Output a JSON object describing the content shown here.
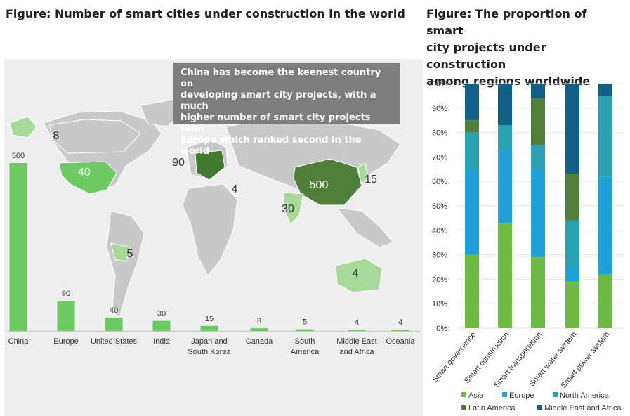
{
  "titles": {
    "left": "Figure: Number of smart cities under construction in the world",
    "right_lines": [
      "Figure: The proportion of smart",
      "city projects under construction",
      "among regions worldwide"
    ]
  },
  "callout_lines": [
    "China has become the keenest country on",
    "developing smart city projects, with a much",
    "higher number of smart city projects than",
    "Europe which ranked second in the world"
  ],
  "map_labels": [
    {
      "region": "Canada",
      "value": "8"
    },
    {
      "region": "United States",
      "value": "40"
    },
    {
      "region": "Europe",
      "value": "90"
    },
    {
      "region": "Middle East and Africa",
      "value": "4"
    },
    {
      "region": "China",
      "value": "500"
    },
    {
      "region": "Japan and South Korea",
      "value": "15"
    },
    {
      "region": "India",
      "value": "30"
    },
    {
      "region": "South America",
      "value": "5"
    },
    {
      "region": "Oceania",
      "value": "4"
    }
  ],
  "colors": {
    "panel_bg": "#eeeeee",
    "land": "#c9c9c9",
    "bar": "#6cc964",
    "asia": "#6dbb45",
    "europe": "#1fa2d8",
    "north_america": "#2aa1b3",
    "latin_america": "#4f7f3b",
    "mea": "#125f85"
  },
  "chart_data": [
    {
      "type": "bar",
      "title": "Figure: Number of smart cities under construction in the world",
      "categories": [
        "China",
        "Europe",
        "United States",
        "India",
        "Japan and South Korea",
        "Canada",
        "South America",
        "Middle East and Africa",
        "Oceania"
      ],
      "category_lines": [
        [
          "China"
        ],
        [
          "Europe"
        ],
        [
          "United States"
        ],
        [
          "India"
        ],
        [
          "Japan and",
          "South Korea"
        ],
        [
          "Canada"
        ],
        [
          "South",
          "America"
        ],
        [
          "Middle East",
          "and Africa"
        ],
        [
          "Oceania"
        ]
      ],
      "values": [
        500,
        90,
        40,
        30,
        15,
        8,
        5,
        4,
        4
      ],
      "ylim": [
        0,
        500
      ]
    },
    {
      "type": "bar",
      "stacked": true,
      "title": "Figure: The proportion of smart city projects under construction among regions worldwide",
      "categories": [
        "Smart governance",
        "Smart construction",
        "Smart transportation",
        "Smart water system",
        "Smart power system"
      ],
      "y_ticks": [
        "0%",
        "10%",
        "20%",
        "30%",
        "40%",
        "50%",
        "60%",
        "70%",
        "80%",
        "90%",
        "100%"
      ],
      "ylim": [
        0,
        100
      ],
      "series": [
        {
          "name": "Asia",
          "color": "#6dbb45",
          "values": [
            30,
            43,
            29,
            19,
            22
          ]
        },
        {
          "name": "Europe",
          "color": "#1fa2d8",
          "values": [
            35,
            30,
            36,
            6,
            40
          ]
        },
        {
          "name": "North America",
          "color": "#2aa1b3",
          "values": [
            15,
            10,
            10,
            19,
            33
          ]
        },
        {
          "name": "Latin America",
          "color": "#4f7f3b",
          "values": [
            5,
            0,
            19,
            19,
            0
          ]
        },
        {
          "name": "Middle East and Africa",
          "color": "#125f85",
          "values": [
            15,
            17,
            6,
            37,
            5
          ]
        }
      ],
      "legend_position": "bottom"
    }
  ]
}
